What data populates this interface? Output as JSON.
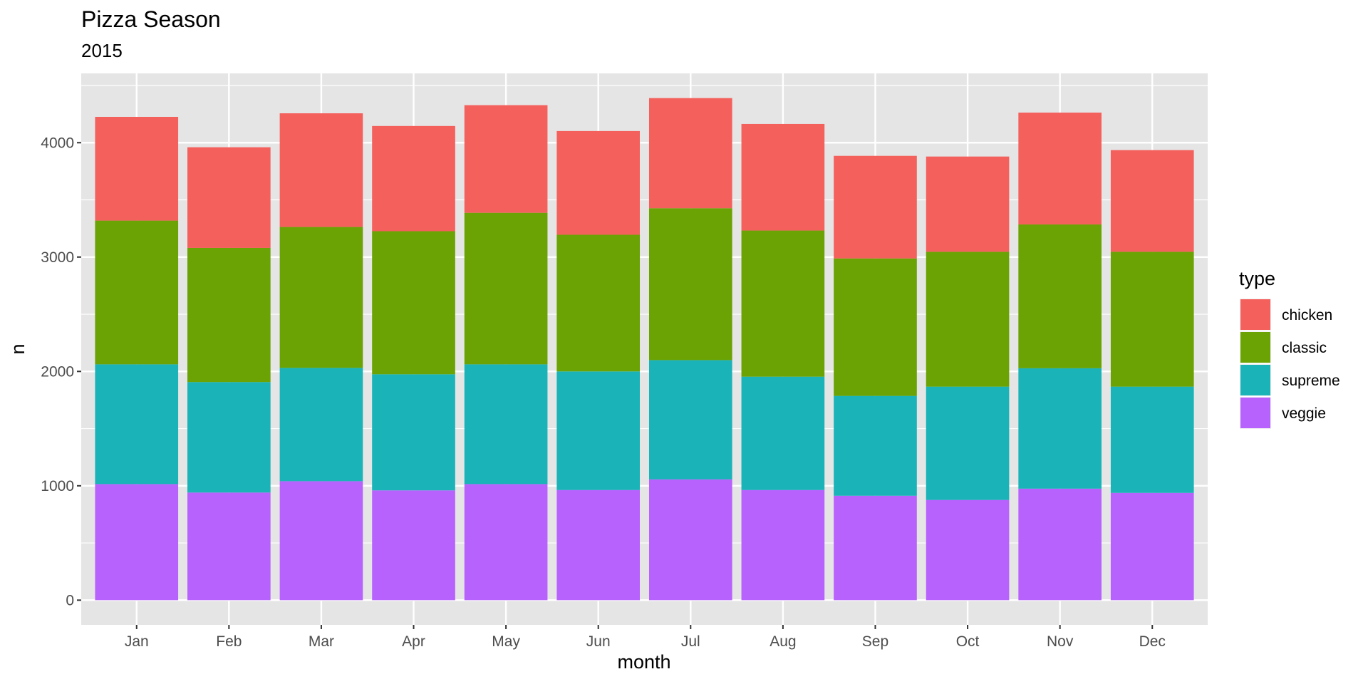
{
  "chart_data": {
    "type": "bar",
    "stacked": true,
    "title": "Pizza Season",
    "subtitle": "2015",
    "xlabel": "month",
    "ylabel": "n",
    "ylim": [
      -216,
      4606
    ],
    "yticks": [
      0,
      1000,
      2000,
      3000,
      4000
    ],
    "ytick_labels": [
      "0",
      "1000",
      "2000",
      "3000",
      "4000"
    ],
    "grid": true,
    "categories": [
      "Jan",
      "Feb",
      "Mar",
      "Apr",
      "May",
      "Jun",
      "Jul",
      "Aug",
      "Sep",
      "Oct",
      "Nov",
      "Dec"
    ],
    "legend": {
      "title": "type",
      "placement": "right"
    },
    "series": [
      {
        "name": "chicken",
        "color": "#F4605C",
        "values": [
          907,
          880,
          994,
          920,
          941,
          907,
          963,
          932,
          897,
          833,
          978,
          889
        ]
      },
      {
        "name": "classic",
        "color": "#6AA303",
        "values": [
          1257,
          1173,
          1232,
          1251,
          1325,
          1195,
          1328,
          1278,
          1202,
          1179,
          1257,
          1179
        ]
      },
      {
        "name": "supreme",
        "color": "#19B3B8",
        "values": [
          1047,
          966,
          991,
          1015,
          1047,
          1037,
          1043,
          991,
          873,
          991,
          1053,
          929
        ]
      },
      {
        "name": "veggie",
        "color": "#B862FD",
        "values": [
          1015,
          941,
          1040,
          960,
          1015,
          963,
          1056,
          963,
          913,
          876,
          975,
          938
        ]
      }
    ]
  }
}
